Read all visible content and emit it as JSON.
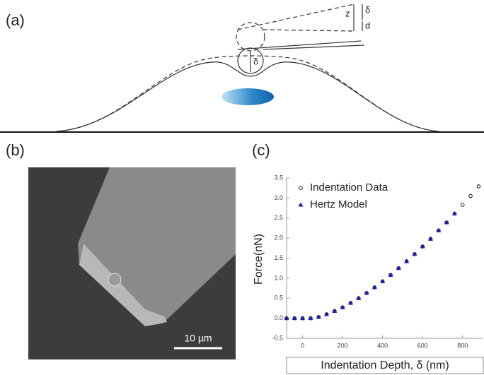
{
  "panels": {
    "a": {
      "label": "(a)",
      "symbols": [
        "z",
        "δ",
        "d",
        "δ"
      ]
    },
    "b": {
      "label": "(b)",
      "scale_bar": "10 µm"
    },
    "c": {
      "label": "(c)"
    }
  },
  "chart_data": {
    "type": "scatter",
    "xlabel": "Indentation Depth, δ (nm)",
    "ylabel": "Force(nN)",
    "xlim": [
      -80,
      900
    ],
    "xticks": [
      0,
      200,
      400,
      600,
      800
    ],
    "ylim": [
      -0.5,
      3.5
    ],
    "yticks": [
      -0.5,
      {
        "value": 0,
        "label": "0.0"
      },
      0.5,
      {
        "value": 1,
        "label": "1.0"
      },
      1.5,
      {
        "value": 2,
        "label": "2.0"
      },
      2.5,
      {
        "value": 3,
        "label": "3.0"
      },
      3.5
    ],
    "legend": "upper left",
    "series": [
      {
        "name": "Indentation Data",
        "color": "#000000",
        "marker": "open-circle",
        "x": [
          -80,
          -40,
          0,
          40,
          80,
          120,
          160,
          200,
          240,
          280,
          320,
          360,
          400,
          440,
          480,
          520,
          560,
          600,
          640,
          680,
          720,
          760,
          800,
          840,
          880
        ],
        "values": [
          0,
          0,
          0,
          0,
          0.03,
          0.1,
          0.18,
          0.27,
          0.38,
          0.5,
          0.63,
          0.77,
          0.92,
          1.08,
          1.25,
          1.42,
          1.6,
          1.79,
          1.98,
          2.19,
          2.39,
          2.61,
          2.83,
          3.05,
          3.29
        ]
      },
      {
        "name": "Hertz Model",
        "color": "#1f22a8",
        "marker": "triangle",
        "x": [
          -80,
          -40,
          0,
          40,
          80,
          120,
          160,
          200,
          240,
          280,
          320,
          360,
          400,
          440,
          480,
          520,
          560,
          600,
          640,
          680,
          720,
          760
        ],
        "values": [
          0,
          0,
          0,
          0,
          0.03,
          0.1,
          0.18,
          0.27,
          0.38,
          0.5,
          0.63,
          0.77,
          0.92,
          1.08,
          1.25,
          1.42,
          1.6,
          1.79,
          1.98,
          2.19,
          2.39,
          2.61
        ]
      }
    ]
  }
}
